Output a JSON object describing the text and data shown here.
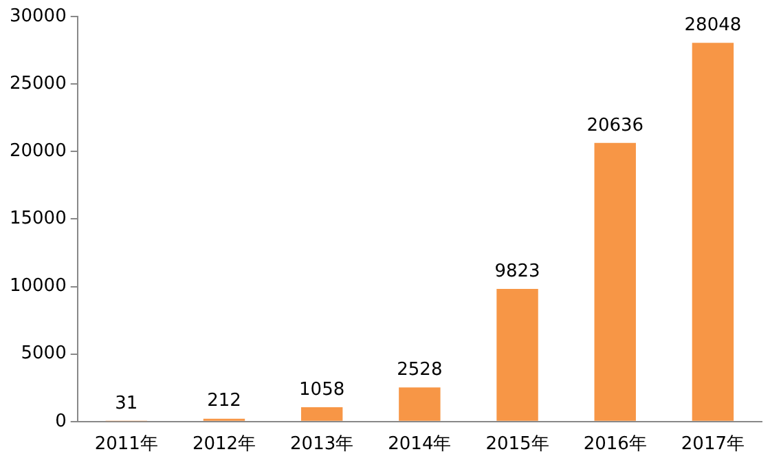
{
  "chart_data": {
    "type": "bar",
    "categories": [
      "2011年",
      "2012年",
      "2013年",
      "2014年",
      "2015年",
      "2016年",
      "2017年"
    ],
    "values": [
      31,
      212,
      1058,
      2528,
      9823,
      20636,
      28048
    ],
    "color": "#f79646",
    "ylim": [
      0,
      30000
    ],
    "yticks": [
      0,
      5000,
      10000,
      15000,
      20000,
      25000,
      30000
    ],
    "grid": false,
    "data_labels": true
  }
}
